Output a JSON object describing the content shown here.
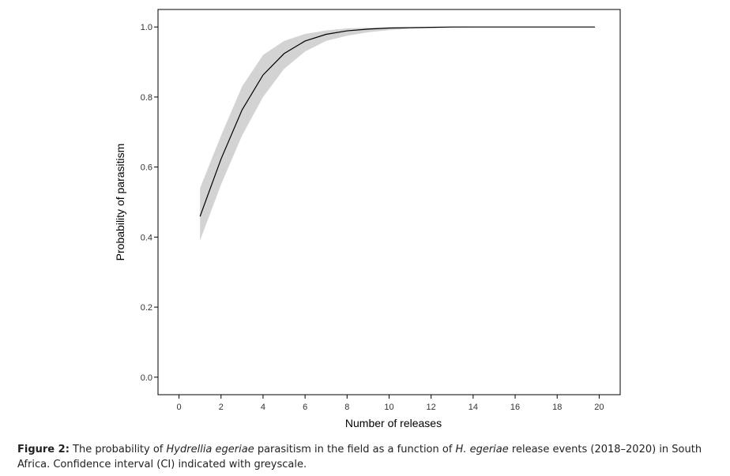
{
  "chart_data": {
    "type": "line",
    "xlabel": "Number of releases",
    "ylabel": "Probability of parasitism",
    "x": [
      1,
      2,
      3,
      4,
      5,
      6,
      7,
      8,
      9,
      10,
      11,
      12,
      13,
      14,
      15,
      16,
      17,
      18,
      19,
      19.8
    ],
    "values": [
      0.459,
      0.623,
      0.763,
      0.863,
      0.924,
      0.96,
      0.979,
      0.989,
      0.994,
      0.997,
      0.998,
      0.999,
      1,
      1,
      1,
      1,
      1,
      1,
      1,
      1
    ],
    "lower": [
      0.39,
      0.55,
      0.69,
      0.8,
      0.88,
      0.93,
      0.96,
      0.975,
      0.985,
      0.991,
      0.995,
      0.997,
      0.998,
      0.999,
      1,
      1,
      1,
      1,
      1,
      1
    ],
    "upper": [
      0.54,
      0.69,
      0.83,
      0.92,
      0.96,
      0.98,
      0.99,
      0.996,
      0.998,
      0.999,
      1,
      1,
      1,
      1,
      1,
      1,
      1,
      1,
      1,
      1
    ],
    "color": "#000000",
    "band_color": "#d3d3d3",
    "xlim": [
      -1,
      21
    ],
    "xticks": [
      0,
      2,
      4,
      6,
      8,
      10,
      12,
      14,
      16,
      18,
      20
    ],
    "ylim": [
      -0.05,
      1.05
    ],
    "yticks": [
      {
        "value": 0,
        "label": "0.0"
      },
      {
        "value": 0.2,
        "label": "0.2"
      },
      {
        "value": 0.4,
        "label": "0.4"
      },
      {
        "value": 0.6,
        "label": "0.6"
      },
      {
        "value": 0.8,
        "label": "0.8"
      },
      {
        "value": 1,
        "label": "1.0"
      }
    ]
  },
  "caption": {
    "label": "Figure 2:",
    "part1": "The probability of",
    "species1": "Hydrellia egeriae",
    "part2": "parasitism in the field as a function of",
    "species2": "H. egeriae",
    "part3": "release events (2018–2020) in South Africa. Confidence interval (CI) indicated with greyscale."
  }
}
